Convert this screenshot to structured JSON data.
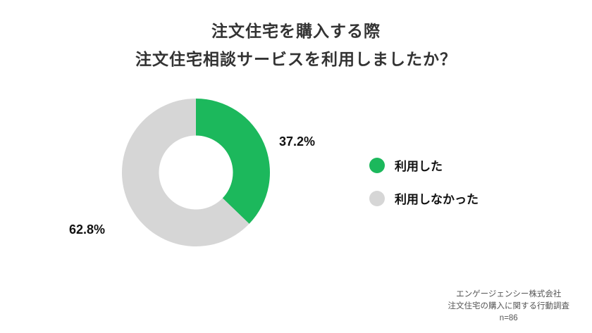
{
  "title": {
    "line1": "注文住宅を購入する際",
    "line2": "注文住宅相談サービスを利用しましたか？"
  },
  "chart_data": {
    "type": "pie",
    "subtype": "donut",
    "title": "注文住宅を購入する際 注文住宅相談サービスを利用しましたか？",
    "categories": [
      "利用した",
      "利用しなかった"
    ],
    "values": [
      37.2,
      62.8
    ],
    "value_labels": [
      "37.2%",
      "62.8%"
    ],
    "colors": [
      "#1cb85c",
      "#d6d6d6"
    ],
    "legend_position": "right",
    "start_angle_deg": -90,
    "direction": "clockwise",
    "hole_ratio": 0.5
  },
  "source": {
    "company": "エンゲージェンシー株式会社",
    "survey": "注文住宅の購入に関する行動調査",
    "sample": "n=86"
  }
}
